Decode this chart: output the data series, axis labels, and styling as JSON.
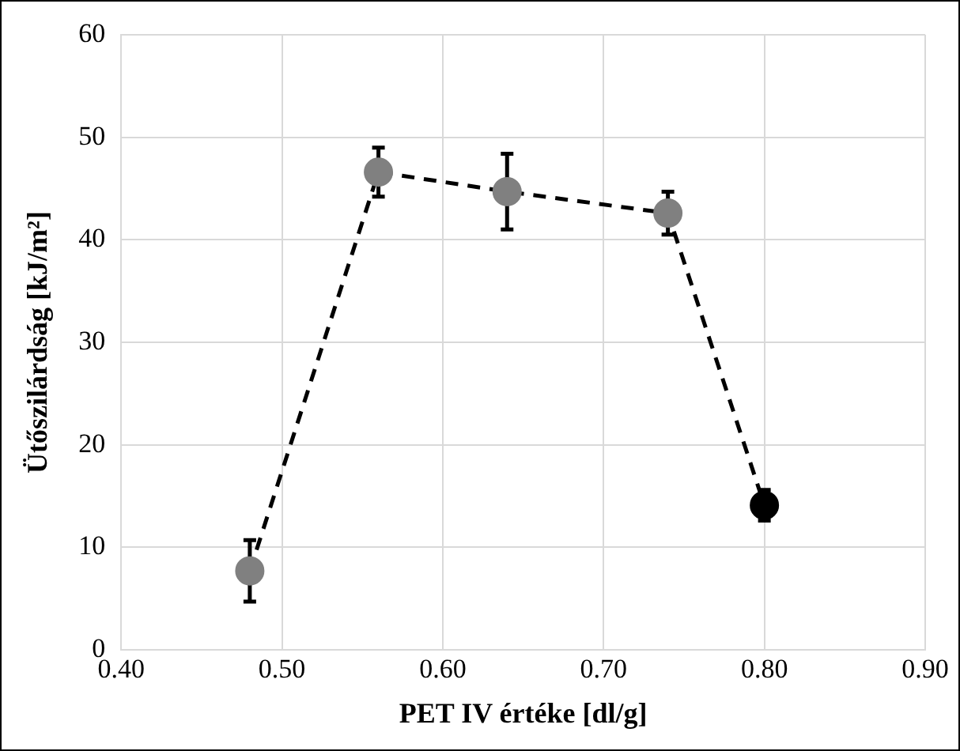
{
  "chart_data": {
    "type": "line",
    "xlabel": "PET IV értéke [dl/g]",
    "ylabel": "Ütőszilárdság [kJ/m²]",
    "x": [
      0.48,
      0.56,
      0.64,
      0.74,
      0.8
    ],
    "series": [
      {
        "color": "#000000",
        "colors": [
          "#808080",
          "#808080",
          "#808080",
          "#808080",
          "#000000"
        ],
        "values": [
          7.7,
          46.6,
          44.7,
          42.6,
          14.1
        ],
        "errors": [
          3,
          2.4,
          3.7,
          2.1,
          1.5
        ]
      }
    ],
    "xlim": [
      0.4,
      0.9
    ],
    "xticks": [
      {
        "value": 0.4,
        "label": "0.40"
      },
      {
        "value": 0.5,
        "label": "0.50"
      },
      {
        "value": 0.6,
        "label": "0.60"
      },
      {
        "value": 0.7,
        "label": "0.70"
      },
      {
        "value": 0.8,
        "label": "0.80"
      },
      {
        "value": 0.9,
        "label": "0.90"
      }
    ],
    "ylim": [
      0,
      60
    ],
    "yticks": [
      0,
      10,
      20,
      30,
      40,
      50,
      60
    ],
    "grid": true,
    "legend": false,
    "marker": "circle",
    "line_style": "dashed"
  }
}
